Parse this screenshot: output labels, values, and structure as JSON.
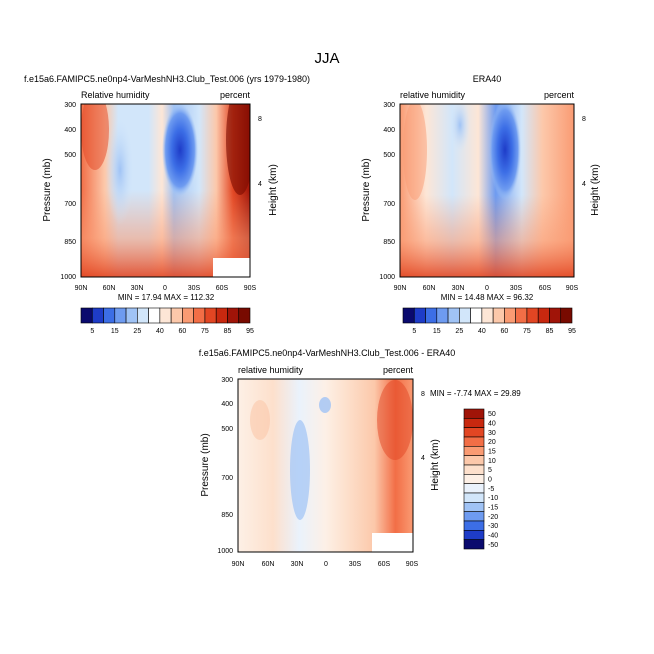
{
  "figure": {
    "title": "JJA"
  },
  "colors": {
    "model_scale": [
      "#0a0a6e",
      "#1e3cc8",
      "#3c6ee6",
      "#6e9bf0",
      "#a0c3f5",
      "#d2e6fa",
      "#ffffff",
      "#fde6d6",
      "#fcc8aa",
      "#fa9b73",
      "#f26e46",
      "#e24623",
      "#c8280f",
      "#a01408",
      "#780a00"
    ],
    "diff_scale": [
      "#0a0a6e",
      "#1e3cc8",
      "#3c6ee6",
      "#6e9bf0",
      "#a0c3f5",
      "#d2e6fa",
      "#eaf2fc",
      "#fdf0e6",
      "#fde0cc",
      "#fcc8aa",
      "#fa9b73",
      "#f26e46",
      "#e24623",
      "#c8280f",
      "#a01408"
    ]
  },
  "chart_data": [
    {
      "type": "heatmap",
      "title": "f.e15a6.FAMIPC5.ne0np4-VarMeshNH3.Club_Test.006 (yrs 1979-1980)",
      "left_label": "Relative humidity",
      "right_label": "percent",
      "ylabel": "Pressure (mb)",
      "ylabel_right": "Height (km)",
      "x_ticks": [
        "90N",
        "60N",
        "30N",
        "0",
        "30S",
        "60S",
        "90S"
      ],
      "y_ticks": [
        "300",
        "400",
        "500",
        "700",
        "850",
        "1000"
      ],
      "height_ticks": [
        "8",
        "4"
      ],
      "stats": "MIN = 17.94  MAX = 112.32",
      "colorbar_labels": [
        "5",
        "15",
        "25",
        "40",
        "60",
        "75",
        "85",
        "95"
      ]
    },
    {
      "type": "heatmap",
      "title": "ERA40",
      "left_label": "relative humidity",
      "right_label": "percent",
      "ylabel": "Pressure (mb)",
      "ylabel_right": "Height (km)",
      "x_ticks": [
        "90N",
        "60N",
        "30N",
        "0",
        "30S",
        "60S",
        "90S"
      ],
      "y_ticks": [
        "300",
        "400",
        "500",
        "700",
        "850",
        "1000"
      ],
      "height_ticks": [
        "8",
        "4"
      ],
      "stats": "MIN = 14.48  MAX = 96.32",
      "colorbar_labels": [
        "5",
        "15",
        "25",
        "40",
        "60",
        "75",
        "85",
        "95"
      ]
    },
    {
      "type": "heatmap",
      "title": "f.e15a6.FAMIPC5.ne0np4-VarMeshNH3.Club_Test.006 - ERA40",
      "left_label": "relative humidity",
      "right_label": "percent",
      "ylabel": "Pressure (mb)",
      "ylabel_right": "Height (km)",
      "x_ticks": [
        "90N",
        "60N",
        "30N",
        "0",
        "30S",
        "60S",
        "90S"
      ],
      "y_ticks": [
        "300",
        "400",
        "500",
        "700",
        "850",
        "1000"
      ],
      "height_ticks": [
        "8",
        "4"
      ],
      "stats": "MIN = -7.74  MAX = 29.89",
      "colorbar_labels": [
        "50",
        "40",
        "30",
        "20",
        "15",
        "10",
        "5",
        "0",
        "-5",
        "-10",
        "-15",
        "-20",
        "-30",
        "-40",
        "-50"
      ]
    }
  ]
}
